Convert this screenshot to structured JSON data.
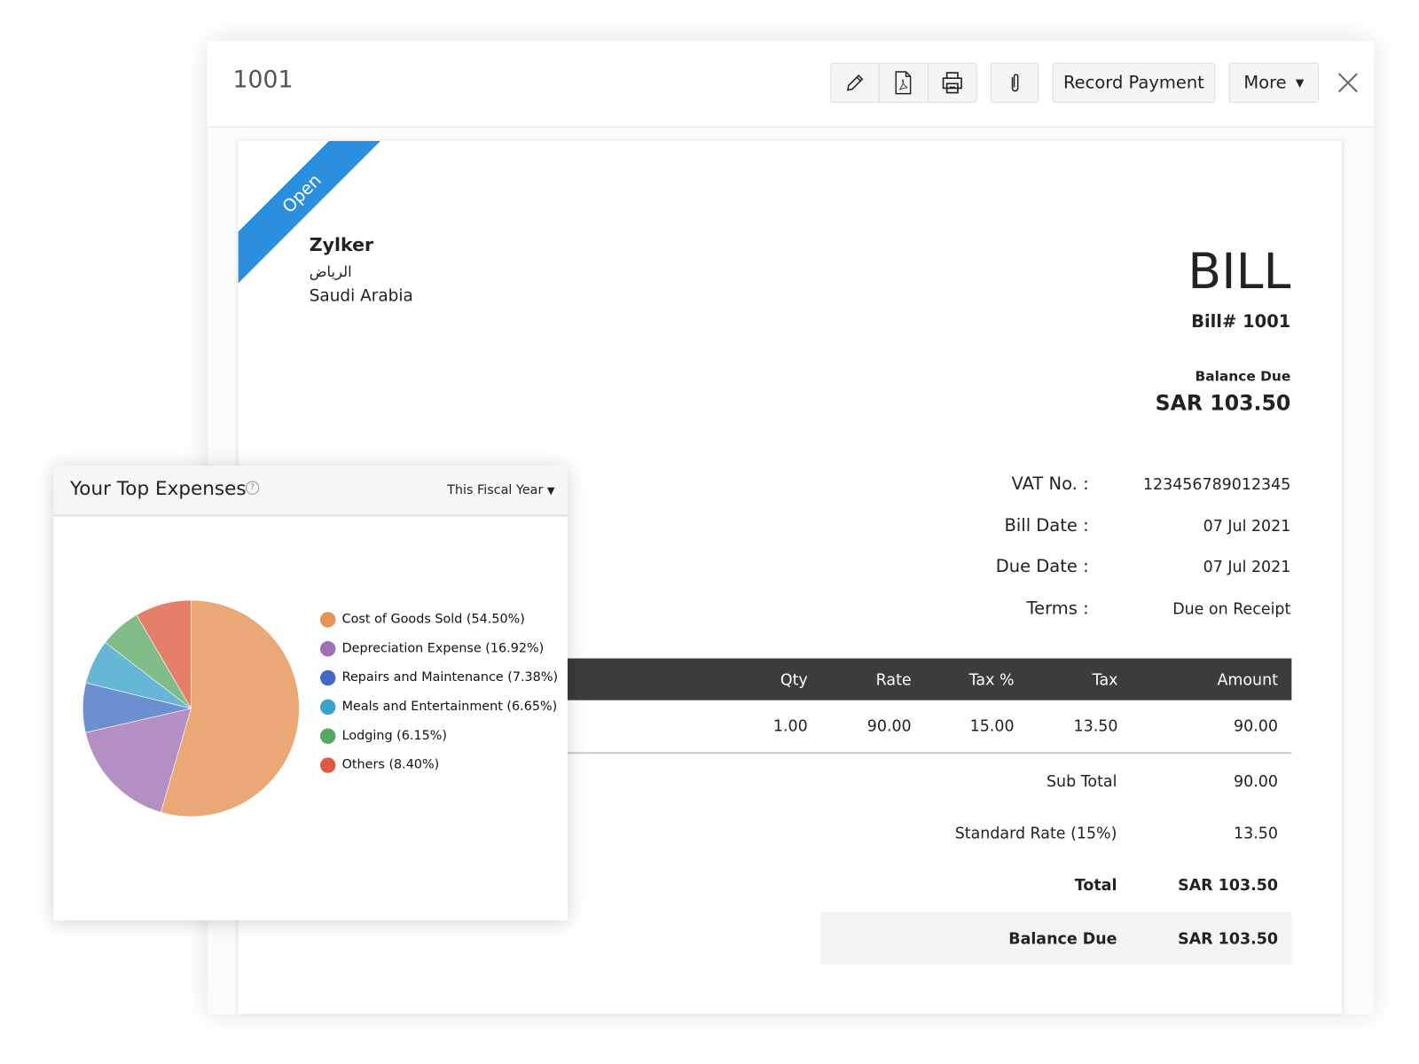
{
  "window": {
    "title": "1001",
    "record_payment": "Record Payment",
    "more": "More",
    "icons": [
      "pencil-icon",
      "pdf-icon",
      "print-icon",
      "paperclip-icon",
      "close-icon"
    ]
  },
  "bill": {
    "status": "Open",
    "status_color": "#2a8fdf",
    "vendor": "Zylker",
    "city": "الرياض",
    "country": "Saudi Arabia",
    "heading": "BILL",
    "number": "Bill# 1001",
    "balance_label": "Balance Due",
    "balance": "SAR 103.50",
    "details": [
      {
        "label": "VAT No. :",
        "value": "123456789012345"
      },
      {
        "label": "Bill Date :",
        "value": "07 Jul 2021"
      },
      {
        "label": "Due Date :",
        "value": "07 Jul 2021"
      },
      {
        "label": "Terms :",
        "value": "Due on Receipt"
      }
    ],
    "table": {
      "headers": [
        "Qty",
        "Rate",
        "Tax %",
        "Tax",
        "Amount"
      ],
      "rows": [
        [
          "1.00",
          "90.00",
          "15.00",
          "13.50",
          "90.00"
        ]
      ]
    },
    "totals": [
      {
        "label": "Sub Total",
        "value": "90.00"
      },
      {
        "label": "Standard Rate (15%)",
        "value": "13.50"
      },
      {
        "label": "Total",
        "value": "SAR 103.50"
      },
      {
        "label": "Balance Due",
        "value": "SAR 103.50"
      }
    ]
  },
  "expenses": {
    "title": "Your Top Expenses",
    "period": "This Fiscal Year",
    "chart_data": {
      "type": "pie",
      "slices": [
        {
          "name": "Cost of Goods Sold (54.50%)",
          "value": 54.5,
          "color": "#eba877",
          "dot": "#e8925a"
        },
        {
          "name": "Depreciation Expense (16.92%)",
          "value": 16.92,
          "color": "#b48fc3",
          "dot": "#a070b5"
        },
        {
          "name": "Repairs and Maintenance (7.38%)",
          "value": 7.38,
          "color": "#6b8fcf",
          "dot": "#4469c1"
        },
        {
          "name": "Meals and Entertainment (6.65%)",
          "value": 6.65,
          "color": "#66b6d6",
          "dot": "#3aa3cc"
        },
        {
          "name": "Lodging (6.15%)",
          "value": 6.15,
          "color": "#80bb88",
          "dot": "#5aa664"
        },
        {
          "name": "Others (8.40%)",
          "value": 8.4,
          "color": "#e47f6a",
          "dot": "#e05a3e"
        }
      ]
    }
  }
}
